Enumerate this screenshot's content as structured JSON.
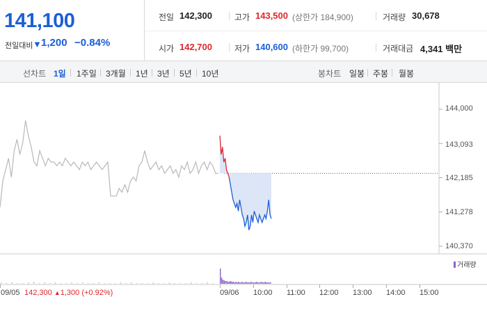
{
  "quote": {
    "current_price": "141,100",
    "change_label": "전일대비",
    "change_abs": "1,200",
    "change_pct": "−0.84%",
    "direction": "down",
    "colors": {
      "up": "#e0262c",
      "down": "#1b5fd6"
    },
    "prev_close": {
      "label": "전일",
      "value": "142,300"
    },
    "high": {
      "label": "고가",
      "value": "143,500",
      "limit_label": "(상한가 184,900)"
    },
    "volume": {
      "label": "거래량",
      "value": "30,678"
    },
    "open": {
      "label": "시가",
      "value": "142,700"
    },
    "low": {
      "label": "저가",
      "value": "140,600",
      "limit_label": "(하한가 99,700)"
    },
    "trading_value": {
      "label": "거래대금",
      "value": "4,341 백만"
    }
  },
  "toolbar": {
    "line_label": "선차트",
    "line_periods": [
      {
        "label": "1일",
        "active": true
      },
      {
        "label": "1주일",
        "active": false
      },
      {
        "label": "3개월",
        "active": false
      },
      {
        "label": "1년",
        "active": false
      },
      {
        "label": "3년",
        "active": false
      },
      {
        "label": "5년",
        "active": false
      },
      {
        "label": "10년",
        "active": false
      }
    ],
    "candle_label": "봉차트",
    "candle_periods": [
      {
        "label": "일봉"
      },
      {
        "label": "주봉"
      },
      {
        "label": "월봉"
      }
    ]
  },
  "chart_data": {
    "type": "line",
    "y_ticks": [
      "144,000",
      "143,093",
      "142,185",
      "141,278",
      "140,370"
    ],
    "ylim": [
      140370,
      144000
    ],
    "x_ticks": [
      "09/05",
      "09/06",
      "10:00",
      "11:00",
      "12:00",
      "13:00",
      "14:00",
      "15:00"
    ],
    "volume_legend": "거래량",
    "prev_close_note": {
      "date": "09/05",
      "price": "142,300",
      "change": "1,300",
      "pct": "(+0.92%)"
    },
    "prev_close_level": 142300,
    "series": [
      {
        "values": [
          141400,
          142100,
          142400,
          142700,
          142200,
          142900,
          143200,
          142800,
          143100,
          143700,
          143300,
          143000,
          142600,
          142500,
          142900,
          142700,
          142500,
          142700,
          142600,
          142600,
          142500,
          142600,
          142500,
          142700,
          142600,
          142500,
          142600,
          142500,
          142400,
          142600,
          142500,
          142600,
          142400,
          142500,
          142600,
          142500,
          142400,
          142500,
          142600,
          141700,
          141700,
          141700,
          141900,
          141800,
          142000,
          141800,
          142100,
          142200,
          142100,
          142500,
          142600,
          142900,
          142600,
          142400,
          142500,
          142600,
          142400,
          142500,
          142300,
          142400,
          142500,
          142300,
          142400,
          142200,
          142500,
          142400,
          142600,
          142300,
          142400,
          142600,
          142300,
          142500,
          142600,
          142400,
          142600,
          142500,
          142300,
          142300
        ]
      },
      {
        "values": [
          143300,
          142800,
          143000,
          142600,
          142700,
          142400,
          142300,
          142200,
          142000,
          141800,
          141600,
          141500,
          141400,
          141500,
          141300,
          141600,
          141400,
          141200,
          141100,
          140900,
          141000,
          141200,
          140800,
          140900,
          141200,
          141000,
          141300,
          141200,
          141100,
          141000,
          141200,
          141100,
          141000,
          141100,
          141200,
          141100,
          141300,
          141600,
          141200,
          141100
        ]
      }
    ],
    "volume": {
      "day1": [
        2,
        1,
        2,
        1,
        1,
        2,
        3,
        1,
        2,
        1,
        2,
        1,
        1,
        2,
        1,
        2,
        1,
        1,
        2,
        1,
        1,
        1,
        2,
        1,
        2,
        1,
        1,
        1,
        2,
        1,
        1,
        2,
        1,
        1,
        1,
        2,
        1,
        1,
        2,
        1
      ],
      "day2": [
        22,
        9,
        6,
        5,
        4,
        4,
        3,
        3,
        4,
        3,
        3,
        2,
        3,
        2,
        3,
        2,
        2,
        3,
        2,
        2,
        3,
        2,
        2,
        2,
        3,
        2,
        2,
        2,
        3,
        2,
        2,
        2,
        3,
        2,
        2,
        3,
        2,
        2,
        2,
        2
      ]
    }
  }
}
